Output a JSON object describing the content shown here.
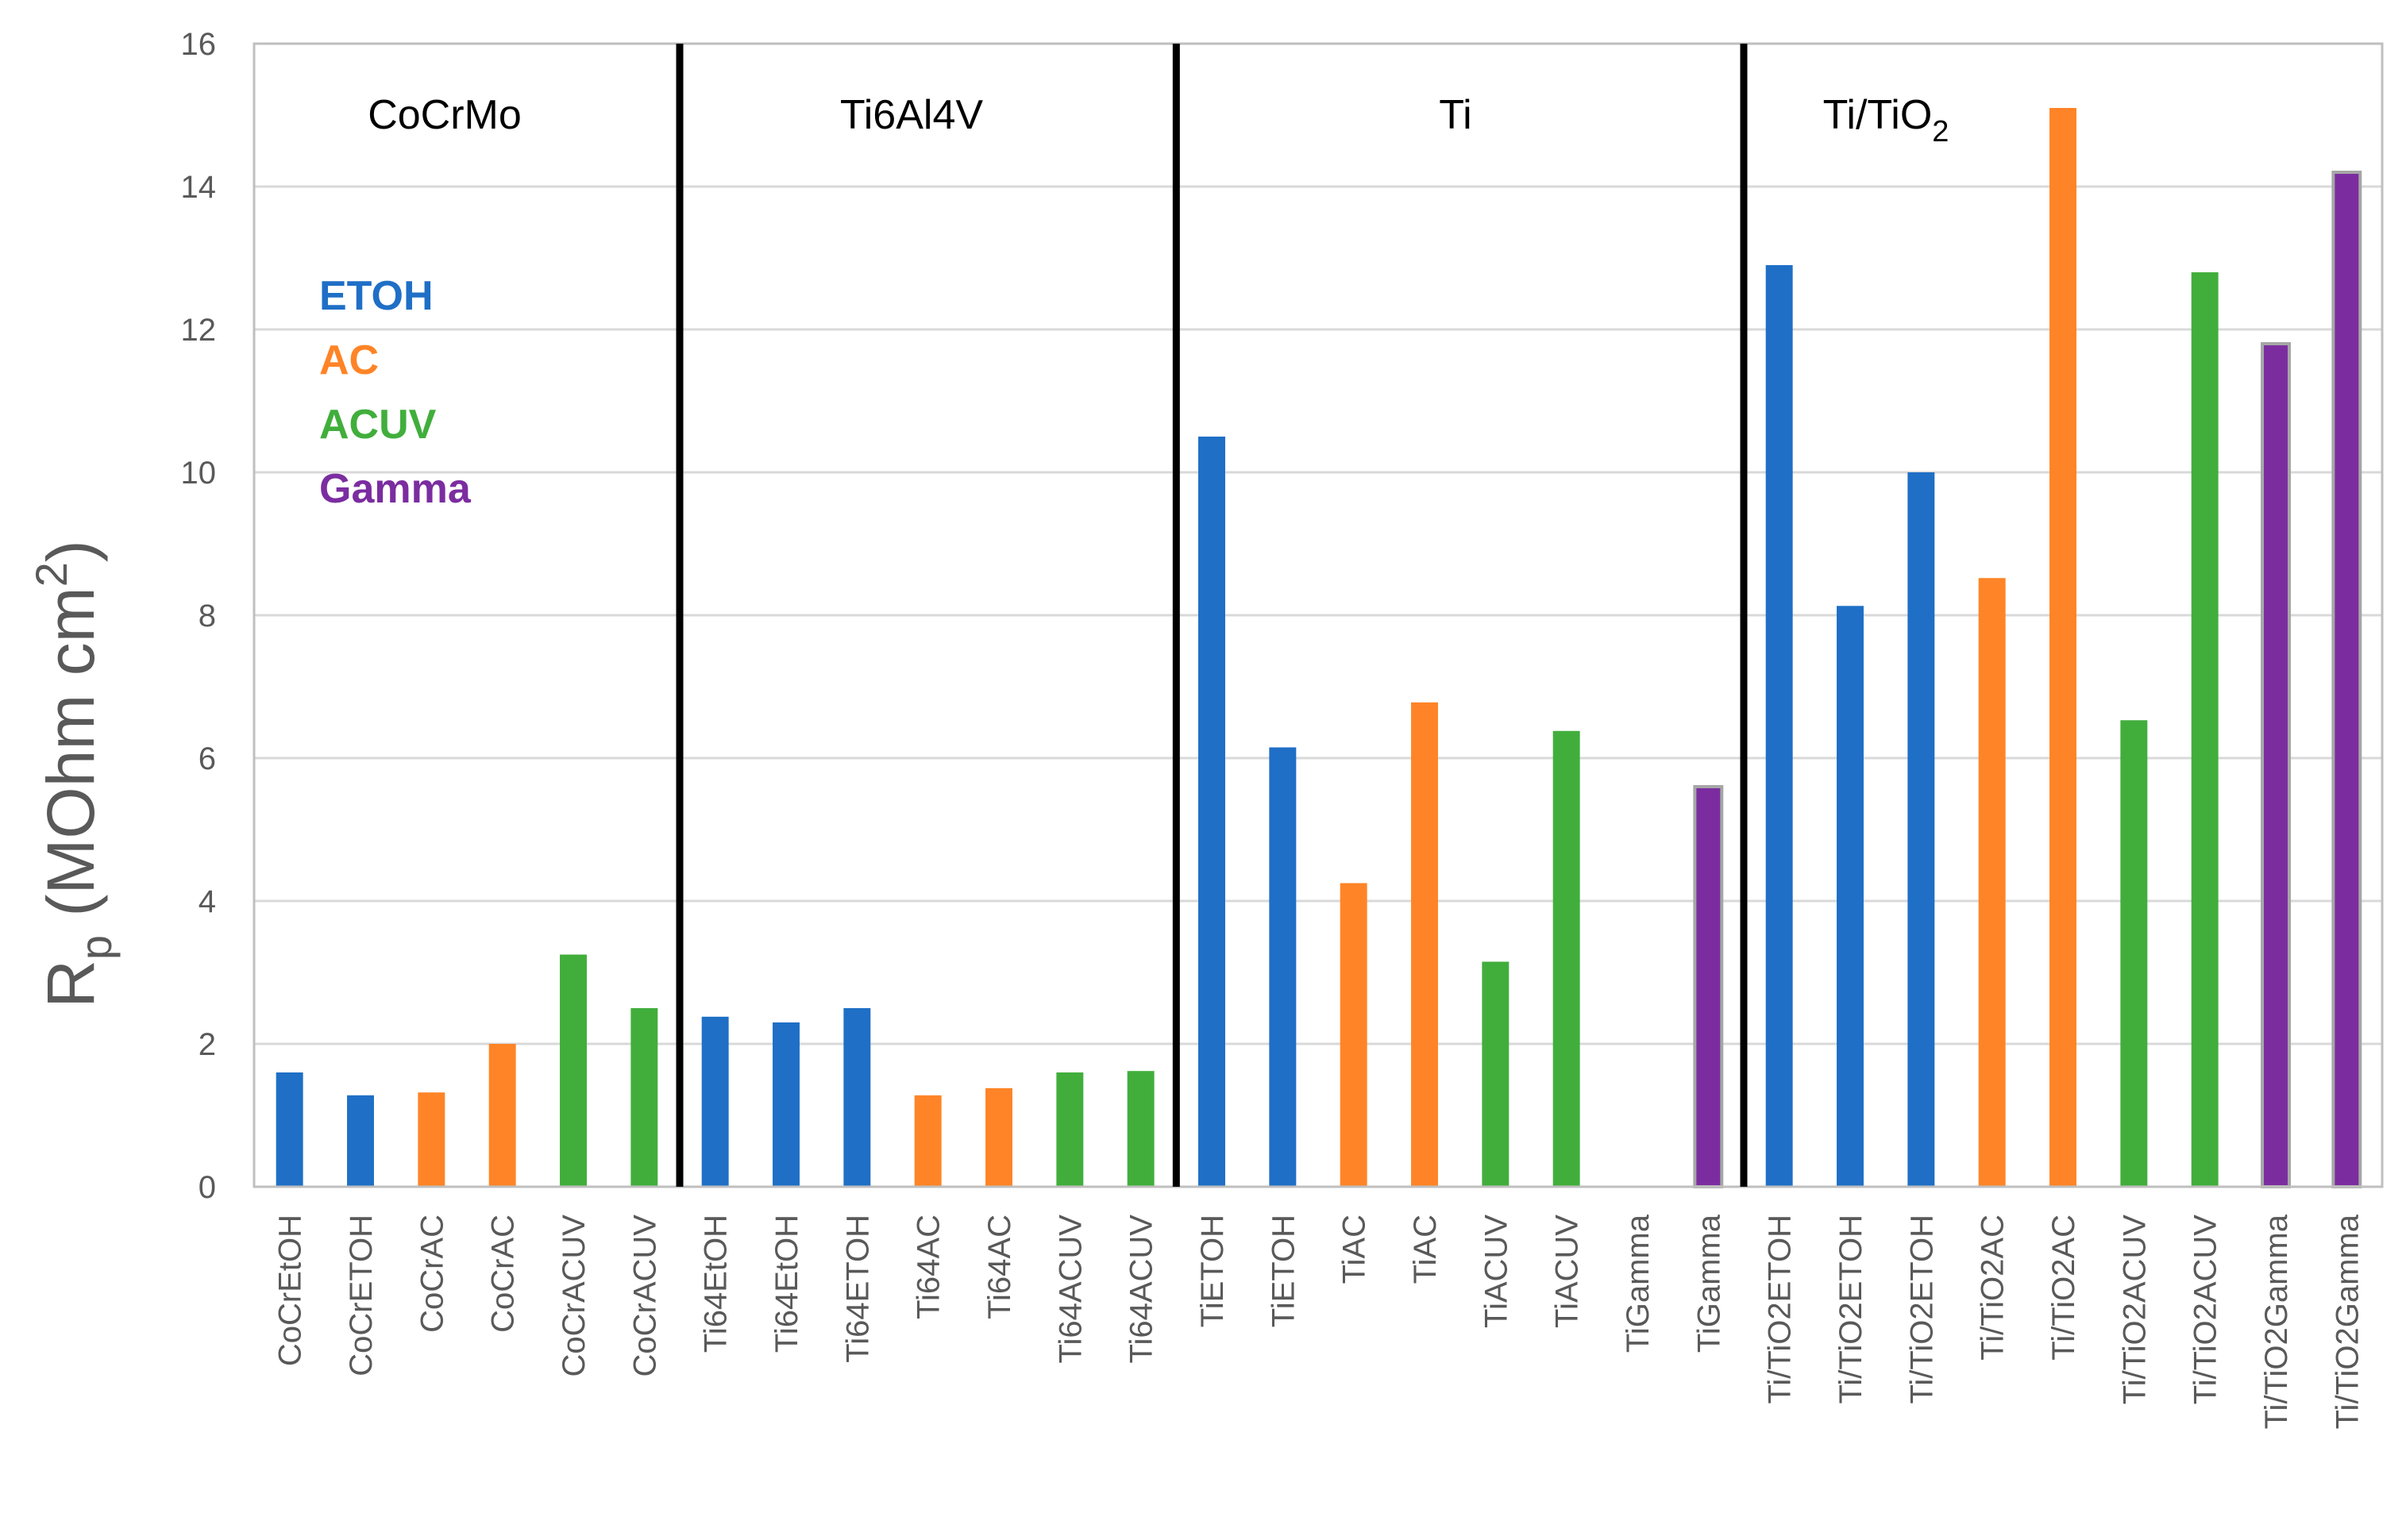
{
  "chart_data": {
    "type": "bar",
    "title": "",
    "xlabel": "",
    "ylabel": {
      "base": "R",
      "sub": "p",
      "unit_prefix": " (MOhm cm",
      "unit_sup": "2",
      "unit_suffix": ")"
    },
    "ylim": [
      0,
      16
    ],
    "yticks": [
      0,
      2,
      4,
      6,
      8,
      10,
      12,
      14,
      16
    ],
    "grid": true,
    "legend_position": "upper-left",
    "legend": [
      {
        "label": "ETOH",
        "color": "#1F6FC6"
      },
      {
        "label": "AC",
        "color": "#FF8427"
      },
      {
        "label": "ACUV",
        "color": "#41AE3C"
      },
      {
        "label": "Gamma",
        "color": "#7B2DA0"
      }
    ],
    "groups": [
      {
        "label": "CoCrMo",
        "label_sub": "",
        "start": 0,
        "end": 5
      },
      {
        "label": "Ti6Al4V",
        "label_sub": "",
        "start": 6,
        "end": 12
      },
      {
        "label": "Ti",
        "label_sub": "",
        "start": 13,
        "end": 20
      },
      {
        "label": "Ti/TiO",
        "label_sub": "2",
        "start": 21,
        "end": 29
      }
    ],
    "categories": [
      "CoCrEtOH",
      "CoCrETOH",
      "CoCrAC",
      "CoCrAC",
      "CoCrACUV",
      "CoCrACUV",
      "Ti64EtOH",
      "Ti64EtOH",
      "Ti64ETOH",
      "Ti64AC",
      "Ti64AC",
      "Ti64ACUV",
      "Ti64ACUV",
      "TiETOH",
      "TiETOH",
      "TiAC",
      "TiAC",
      "TiACUV",
      "TiACUV",
      "TiGamma",
      "TiGamma",
      "Ti/TiO2ETOH",
      "Ti/TiO2ETOH",
      "Ti/TiO2ETOH",
      "Ti/TiO2AC",
      "Ti/TiO2AC",
      "Ti/TiO2ACUV",
      "Ti/TiO2ACUV",
      "Ti/TiO2Gamma",
      "Ti/TiO2Gamma"
    ],
    "values": [
      1.6,
      1.28,
      1.32,
      2.0,
      3.25,
      2.5,
      2.38,
      2.3,
      2.5,
      1.28,
      1.38,
      1.6,
      1.62,
      10.5,
      6.15,
      4.25,
      6.78,
      3.15,
      6.38,
      0,
      5.6,
      12.9,
      8.13,
      10.0,
      8.52,
      15.1,
      6.53,
      12.8,
      11.8,
      14.2
    ],
    "treatments": [
      "ETOH",
      "ETOH",
      "AC",
      "AC",
      "ACUV",
      "ACUV",
      "ETOH",
      "ETOH",
      "ETOH",
      "AC",
      "AC",
      "ACUV",
      "ACUV",
      "ETOH",
      "ETOH",
      "AC",
      "AC",
      "ACUV",
      "ACUV",
      "Gamma",
      "Gamma",
      "ETOH",
      "ETOH",
      "ETOH",
      "AC",
      "AC",
      "ACUV",
      "ACUV",
      "Gamma",
      "Gamma"
    ]
  }
}
